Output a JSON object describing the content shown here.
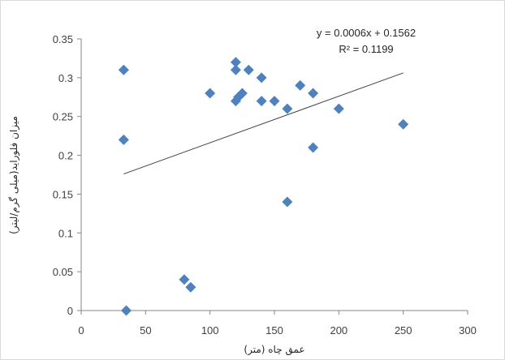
{
  "chart_data": {
    "type": "scatter",
    "title": "",
    "xlabel": "عمق چاه (متر)",
    "ylabel": "میزان فلوراید(میلی گرم/لیتر)",
    "xlim": [
      0,
      300
    ],
    "ylim": [
      0,
      0.35
    ],
    "x_ticks": [
      0,
      50,
      100,
      150,
      200,
      250,
      300
    ],
    "y_ticks": [
      0,
      0.05,
      0.1,
      0.15,
      0.2,
      0.25,
      0.3,
      0.35
    ],
    "x_tick_labels": [
      "0",
      "50",
      "100",
      "150",
      "200",
      "250",
      "300"
    ],
    "y_tick_labels": [
      "0",
      "0.05",
      "0.1",
      "0.15",
      "0.2",
      "0.25",
      "0.3",
      "0.35"
    ],
    "grid": false,
    "marker_color": "#4f81bd",
    "trendline_color": "#404040",
    "series": [
      {
        "points": [
          [
            33,
            0.31
          ],
          [
            33,
            0.22
          ],
          [
            35,
            0
          ],
          [
            80,
            0.04
          ],
          [
            85,
            0.03
          ],
          [
            100,
            0.28
          ],
          [
            120,
            0.32
          ],
          [
            120,
            0.31
          ],
          [
            120,
            0.27
          ],
          [
            122,
            0.275
          ],
          [
            125,
            0.28
          ],
          [
            130,
            0.31
          ],
          [
            140,
            0.3
          ],
          [
            140,
            0.27
          ],
          [
            150,
            0.27
          ],
          [
            160,
            0.26
          ],
          [
            160,
            0.14
          ],
          [
            170,
            0.29
          ],
          [
            180,
            0.28
          ],
          [
            180,
            0.21
          ],
          [
            200,
            0.26
          ],
          [
            250,
            0.24
          ]
        ]
      }
    ],
    "trendline": {
      "slope": 0.0006,
      "intercept": 0.1562,
      "x_range": [
        33,
        250
      ],
      "equation": "y = 0.0006x + 0.1562",
      "r_squared": "R² = 0.1199"
    }
  }
}
